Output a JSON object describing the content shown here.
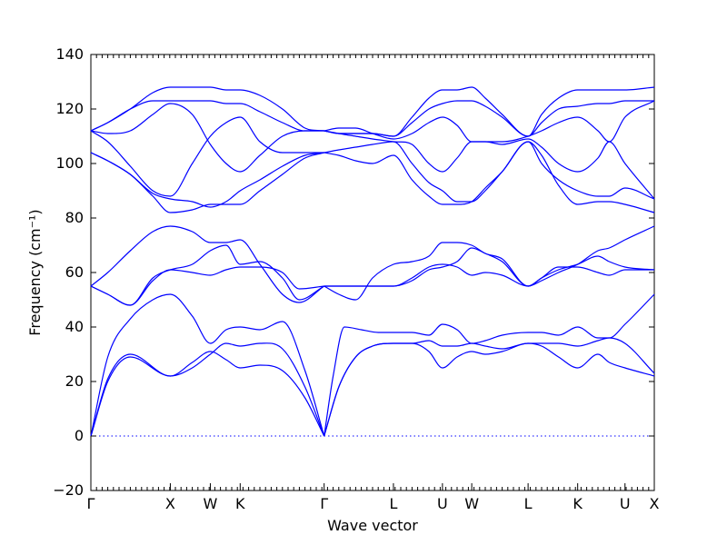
{
  "chart_data": {
    "type": "line",
    "title": "",
    "xlabel": "Wave vector",
    "ylabel": "Frequency",
    "ylabel_unit": "(cm⁻¹)",
    "ylim": [
      -20,
      140
    ],
    "yticks": [
      -20,
      0,
      20,
      40,
      60,
      80,
      100,
      120,
      140
    ],
    "xlim": [
      0,
      10
    ],
    "xticks": [
      {
        "label": "Γ",
        "x": 0
      },
      {
        "label": "X",
        "x": 1.41
      },
      {
        "label": "W",
        "x": 2.12
      },
      {
        "label": "K",
        "x": 2.65
      },
      {
        "label": "Γ",
        "x": 4.14
      },
      {
        "label": "L",
        "x": 5.37
      },
      {
        "label": "U",
        "x": 6.24
      },
      {
        "label": "W",
        "x": 6.76
      },
      {
        "label": "L",
        "x": 7.76
      },
      {
        "label": "K",
        "x": 8.64
      },
      {
        "label": "U",
        "x": 9.48
      },
      {
        "label": "X",
        "x": 10
      }
    ],
    "reference_line": {
      "y": 0,
      "style": "dotted"
    },
    "series": [
      {
        "x": [
          0,
          0.3,
          0.7,
          1.41,
          1.8,
          2.12,
          2.4,
          2.65,
          3.0,
          3.4,
          3.8,
          4.14
        ],
        "y": [
          0,
          20,
          29,
          22,
          27,
          31,
          28,
          25,
          26,
          24,
          14,
          0
        ]
      },
      {
        "x": [
          0,
          0.3,
          0.7,
          1.41,
          1.8,
          2.12,
          2.4,
          2.65,
          3.0,
          3.4,
          3.8,
          4.14
        ],
        "y": [
          0,
          21,
          30,
          22,
          25,
          30,
          34,
          33,
          34,
          32,
          18,
          0
        ]
      },
      {
        "x": [
          0,
          0.3,
          0.7,
          1.1,
          1.41,
          1.8,
          2.12,
          2.4,
          2.65,
          3.0,
          3.4,
          3.8,
          4.14
        ],
        "y": [
          0,
          29,
          43,
          50,
          52,
          44,
          34,
          39,
          40,
          39,
          42,
          24,
          0
        ]
      },
      {
        "x": [
          4.14,
          4.4,
          4.7,
          5.0,
          5.37,
          5.7,
          6.0,
          6.24,
          6.5,
          6.76,
          7.0,
          7.3,
          7.76,
          8.0,
          8.3,
          8.64,
          9.0,
          9.2,
          9.48,
          10
        ],
        "y": [
          0,
          18,
          29,
          33,
          34,
          34,
          31,
          25,
          29,
          31,
          30,
          31,
          34,
          33,
          29,
          25,
          30,
          27,
          25,
          22
        ]
      },
      {
        "x": [
          4.14,
          4.4,
          4.7,
          5.0,
          5.37,
          5.7,
          6.0,
          6.24,
          6.5,
          6.76,
          7.0,
          7.3,
          7.76,
          8.0,
          8.3,
          8.64,
          9.0,
          9.2,
          9.48,
          10
        ],
        "y": [
          0,
          18,
          29,
          33,
          34,
          34,
          35,
          33,
          33,
          34,
          33,
          32,
          34,
          34,
          34,
          33,
          35,
          36,
          34,
          23
        ]
      },
      {
        "x": [
          4.14,
          4.3,
          4.5,
          4.8,
          5.1,
          5.37,
          5.7,
          6.0,
          6.24,
          6.5,
          6.76,
          7.0,
          7.3,
          7.76,
          8.0,
          8.3,
          8.64,
          9.0,
          9.2,
          9.48,
          10
        ],
        "y": [
          0,
          22,
          40,
          39,
          38,
          38,
          38,
          37,
          41,
          39,
          34,
          35,
          37,
          38,
          38,
          37,
          40,
          36,
          36,
          41,
          52
        ]
      },
      {
        "x": [
          0,
          0.3,
          0.7,
          1.1,
          1.41,
          1.8,
          2.12,
          2.4,
          2.65,
          3.0,
          3.4,
          3.7,
          4.14
        ],
        "y": [
          55,
          52,
          48,
          58,
          61,
          63,
          68,
          70,
          63,
          64,
          58,
          50,
          55
        ]
      },
      {
        "x": [
          0,
          0.3,
          0.7,
          1.1,
          1.41,
          1.8,
          2.12,
          2.4,
          2.65,
          3.0,
          3.4,
          3.7,
          4.14
        ],
        "y": [
          55,
          52,
          48,
          57,
          61,
          60,
          59,
          61,
          62,
          62,
          60,
          54,
          55
        ]
      },
      {
        "x": [
          0,
          0.3,
          0.7,
          1.1,
          1.41,
          1.8,
          2.12,
          2.4,
          2.65,
          3.0,
          3.4,
          3.7,
          4.14
        ],
        "y": [
          55,
          60,
          68,
          75,
          77,
          75,
          71,
          71,
          72,
          63,
          52,
          49,
          55
        ]
      },
      {
        "x": [
          4.14,
          4.4,
          4.7,
          5.0,
          5.37,
          5.7,
          6.0,
          6.24,
          6.5,
          6.76,
          7.0,
          7.3,
          7.76,
          8.0,
          8.3,
          8.64,
          9.0,
          9.2,
          9.48,
          10
        ],
        "y": [
          55,
          52,
          50,
          58,
          63,
          64,
          66,
          71,
          71,
          70,
          67,
          65,
          55,
          57,
          60,
          63,
          68,
          69,
          72,
          77
        ]
      },
      {
        "x": [
          4.14,
          4.4,
          4.7,
          5.0,
          5.37,
          5.7,
          6.0,
          6.24,
          6.5,
          6.76,
          7.0,
          7.3,
          7.76,
          8.0,
          8.3,
          8.64,
          9.0,
          9.2,
          9.48,
          10
        ],
        "y": [
          55,
          55,
          55,
          55,
          55,
          57,
          61,
          62,
          64,
          69,
          67,
          64,
          55,
          58,
          61,
          63,
          66,
          64,
          62,
          61
        ]
      },
      {
        "x": [
          4.14,
          4.4,
          4.7,
          5.0,
          5.37,
          5.7,
          6.0,
          6.24,
          6.5,
          6.76,
          7.0,
          7.3,
          7.76,
          8.0,
          8.3,
          8.64,
          9.0,
          9.2,
          9.48,
          10
        ],
        "y": [
          55,
          55,
          55,
          55,
          55,
          58,
          62,
          63,
          62,
          59,
          60,
          59,
          55,
          58,
          62,
          62,
          60,
          59,
          61,
          61
        ]
      },
      {
        "x": [
          0,
          0.3,
          0.7,
          1.1,
          1.41,
          1.8,
          2.12,
          2.4,
          2.65,
          3.0,
          3.4,
          3.8,
          4.14
        ],
        "y": [
          104,
          101,
          96,
          89,
          87,
          86,
          84,
          86,
          90,
          94,
          99,
          103,
          104
        ]
      },
      {
        "x": [
          0,
          0.3,
          0.7,
          1.1,
          1.41,
          1.8,
          2.12,
          2.4,
          2.65,
          3.0,
          3.4,
          3.8,
          4.14
        ],
        "y": [
          104,
          101,
          96,
          88,
          82,
          83,
          85,
          85,
          85,
          90,
          96,
          102,
          104
        ]
      },
      {
        "x": [
          0,
          0.3,
          0.7,
          1.1,
          1.41,
          1.8,
          2.12,
          2.4,
          2.65,
          3.0,
          3.4,
          3.8,
          4.14
        ],
        "y": [
          112,
          108,
          99,
          90,
          88,
          100,
          110,
          115,
          117,
          108,
          104,
          104,
          104
        ]
      },
      {
        "x": [
          0,
          0.3,
          0.7,
          1.1,
          1.41,
          1.8,
          2.12,
          2.4,
          2.65,
          3.0,
          3.4,
          3.8,
          4.14
        ],
        "y": [
          112,
          111,
          112,
          118,
          122,
          118,
          107,
          100,
          97,
          103,
          110,
          112,
          112
        ]
      },
      {
        "x": [
          0,
          0.3,
          0.7,
          1.1,
          1.41,
          1.8,
          2.12,
          2.4,
          2.65,
          3.0,
          3.4,
          3.8,
          4.14
        ],
        "y": [
          112,
          115,
          120,
          123,
          123,
          123,
          123,
          122,
          122,
          119,
          115,
          112,
          112
        ]
      },
      {
        "x": [
          0,
          0.3,
          0.7,
          1.1,
          1.41,
          1.8,
          2.12,
          2.4,
          2.65,
          3.0,
          3.4,
          3.8,
          4.14
        ],
        "y": [
          112,
          115,
          120,
          126,
          128,
          128,
          128,
          127,
          127,
          125,
          120,
          113,
          112
        ]
      },
      {
        "x": [
          4.14,
          4.4,
          4.7,
          5.0,
          5.37,
          5.7,
          6.0,
          6.24,
          6.5,
          6.76,
          7.0,
          7.3,
          7.76,
          8.0,
          8.3,
          8.64,
          9.0,
          9.2,
          9.48,
          10
        ],
        "y": [
          104,
          103,
          101,
          100,
          103,
          94,
          88,
          85,
          85,
          86,
          91,
          97,
          108,
          103,
          92,
          85,
          86,
          86,
          85,
          82
        ]
      },
      {
        "x": [
          4.14,
          4.4,
          4.7,
          5.0,
          5.37,
          5.7,
          6.0,
          6.24,
          6.5,
          6.76,
          7.0,
          7.3,
          7.76,
          8.0,
          8.3,
          8.64,
          9.0,
          9.2,
          9.48,
          10
        ],
        "y": [
          104,
          105,
          106,
          107,
          108,
          100,
          93,
          90,
          86,
          86,
          90,
          97,
          108,
          100,
          94,
          90,
          88,
          88,
          91,
          87
        ]
      },
      {
        "x": [
          4.14,
          4.4,
          4.7,
          5.0,
          5.37,
          5.7,
          6.0,
          6.24,
          6.5,
          6.76,
          7.0,
          7.3,
          7.76,
          8.0,
          8.3,
          8.64,
          9.0,
          9.2,
          9.48,
          10
        ],
        "y": [
          112,
          111,
          110,
          109,
          108,
          107,
          100,
          97,
          102,
          108,
          108,
          107,
          109,
          106,
          100,
          97,
          102,
          108,
          100,
          87
        ]
      },
      {
        "x": [
          4.14,
          4.4,
          4.7,
          5.0,
          5.37,
          5.7,
          6.0,
          6.24,
          6.5,
          6.76,
          7.0,
          7.3,
          7.76,
          8.0,
          8.3,
          8.64,
          9.0,
          9.2,
          9.48,
          10
        ],
        "y": [
          112,
          113,
          113,
          111,
          109,
          111,
          115,
          117,
          114,
          108,
          108,
          108,
          110,
          112,
          115,
          117,
          112,
          108,
          117,
          123
        ]
      },
      {
        "x": [
          4.14,
          4.4,
          4.7,
          5.0,
          5.37,
          5.7,
          6.0,
          6.24,
          6.5,
          6.76,
          7.0,
          7.3,
          7.76,
          8.0,
          8.3,
          8.64,
          9.0,
          9.2,
          9.48,
          10
        ],
        "y": [
          112,
          111,
          111,
          111,
          110,
          115,
          120,
          122,
          123,
          123,
          121,
          117,
          110,
          115,
          120,
          121,
          122,
          122,
          123,
          123
        ]
      },
      {
        "x": [
          4.14,
          4.4,
          4.7,
          5.0,
          5.37,
          5.7,
          6.0,
          6.24,
          6.5,
          6.76,
          7.0,
          7.3,
          7.76,
          8.0,
          8.3,
          8.64,
          9.0,
          9.2,
          9.48,
          10
        ],
        "y": [
          112,
          111,
          111,
          111,
          110,
          117,
          124,
          127,
          127,
          128,
          124,
          118,
          110,
          118,
          124,
          127,
          127,
          127,
          127,
          128
        ]
      }
    ]
  }
}
